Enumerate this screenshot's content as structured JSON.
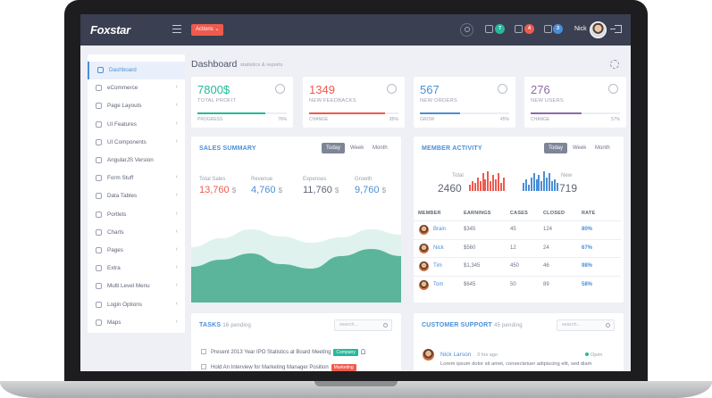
{
  "app": {
    "brand": "Foxstar",
    "actions_label": "Actions ⌄"
  },
  "header": {
    "badges": [
      {
        "icon": "bell-icon",
        "count": "7",
        "color": "#26b99a"
      },
      {
        "icon": "headset-icon",
        "count": "4",
        "color": "#ef5a4e"
      },
      {
        "icon": "calendar-icon",
        "count": "3",
        "color": "#4a8fd6"
      }
    ],
    "user_name": "Nick"
  },
  "sidebar": {
    "items": [
      {
        "label": "Dashboard",
        "icon": "home-icon",
        "chevron": "",
        "active": true
      },
      {
        "label": "eCommerce",
        "icon": "cart-icon",
        "chevron": "‹"
      },
      {
        "label": "Page Layouts",
        "icon": "layout-icon",
        "chevron": "‹"
      },
      {
        "label": "UI Features",
        "icon": "diamond-icon",
        "chevron": "‹"
      },
      {
        "label": "UI Components",
        "icon": "gear-icon",
        "chevron": "‹"
      },
      {
        "label": "AngularJS Version",
        "icon": "angular-icon",
        "chevron": ""
      },
      {
        "label": "Form Stuff",
        "icon": "form-icon",
        "chevron": "‹"
      },
      {
        "label": "Data Tables",
        "icon": "table-icon",
        "chevron": "‹"
      },
      {
        "label": "Portlets",
        "icon": "portlet-icon",
        "chevron": "‹"
      },
      {
        "label": "Charts",
        "icon": "chart-icon",
        "chevron": "‹"
      },
      {
        "label": "Pages",
        "icon": "pages-icon",
        "chevron": "‹"
      },
      {
        "label": "Extra",
        "icon": "extra-icon",
        "chevron": "‹"
      },
      {
        "label": "Multi Level Menu",
        "icon": "menu-icon",
        "chevron": "‹"
      },
      {
        "label": "Login Options",
        "icon": "login-icon",
        "chevron": "‹"
      },
      {
        "label": "Maps",
        "icon": "map-pin-icon",
        "chevron": "‹"
      }
    ]
  },
  "page": {
    "title": "Dashboard",
    "subtitle": "statistics & reports"
  },
  "stats": [
    {
      "value": "7800$",
      "label": "TOTAL PROFIT",
      "foot": "PROGRESS",
      "pct": "76%",
      "progress": 0.76,
      "color": "#26b99a",
      "icon": "pie-icon"
    },
    {
      "value": "1349",
      "label": "NEW FEEDBACKS",
      "foot": "CHANGE",
      "pct": "85%",
      "progress": 0.85,
      "color": "#ef5a4e",
      "icon": "thumbs-up-icon"
    },
    {
      "value": "567",
      "label": "NEW ORDERS",
      "foot": "GROW",
      "pct": "45%",
      "progress": 0.45,
      "color": "#4a8fd6",
      "icon": "basket-icon"
    },
    {
      "value": "276",
      "label": "NEW USERS",
      "foot": "CHANGE",
      "pct": "57%",
      "progress": 0.57,
      "color": "#8e6aa8",
      "icon": "user-icon"
    }
  ],
  "sales": {
    "title": "SALES SUMMARY",
    "tabs": [
      "Today",
      "Week",
      "Month"
    ],
    "metrics": [
      {
        "label": "Total Sales",
        "value": "13,760",
        "unit": "$",
        "color": "#ef5a4e"
      },
      {
        "label": "Revenue",
        "value": "4,760",
        "unit": "$",
        "color": "#4a8fd6"
      },
      {
        "label": "Expenses",
        "value": "11,760",
        "unit": "$",
        "color": "#5d6476"
      },
      {
        "label": "Growth",
        "value": "9,760",
        "unit": "$",
        "color": "#4a8fd6"
      }
    ],
    "chart_data": {
      "type": "area",
      "series": [
        {
          "values": [
            0.62,
            0.72,
            0.82,
            0.74,
            0.67,
            0.73,
            0.82,
            0.76
          ],
          "color": "#dff2ee"
        },
        {
          "values": [
            0.4,
            0.48,
            0.55,
            0.43,
            0.38,
            0.52,
            0.6,
            0.52
          ],
          "color": "#5bb59b"
        }
      ]
    }
  },
  "members": {
    "title": "MEMBER ACTIVITY",
    "tabs": [
      "Today",
      "Week",
      "Month"
    ],
    "total_label": "Total",
    "total_value": "2460",
    "new_label": "New",
    "new_value": "719",
    "chart_data": {
      "type": "bar",
      "series": [
        {
          "values": [
            3,
            5,
            4,
            7,
            5,
            9,
            6,
            10,
            5,
            8,
            6,
            9,
            4,
            7
          ],
          "color": "#ef5a4e"
        },
        {
          "values": [
            4,
            6,
            3,
            7,
            9,
            6,
            8,
            5,
            10,
            7,
            9,
            5,
            6,
            4
          ],
          "color": "#4a8fd6"
        }
      ]
    },
    "columns": [
      "MEMBER",
      "EARNINGS",
      "CASES",
      "CLOSED",
      "RATE"
    ],
    "rows": [
      {
        "name": "Brain",
        "earnings": "$345",
        "cases": "45",
        "closed": "124",
        "rate": "80%"
      },
      {
        "name": "Nick",
        "earnings": "$560",
        "cases": "12",
        "closed": "24",
        "rate": "67%"
      },
      {
        "name": "Tim",
        "earnings": "$1,345",
        "cases": "450",
        "closed": "46",
        "rate": "98%"
      },
      {
        "name": "Tom",
        "earnings": "$645",
        "cases": "50",
        "closed": "89",
        "rate": "58%"
      }
    ]
  },
  "tasks": {
    "title": "TASKS",
    "sub": "16 pending",
    "search_placeholder": "search...",
    "items": [
      {
        "text": "Present 2013 Year IPO Statistics at Board Meeting",
        "tag": "Company",
        "tag_color": "#26b99a"
      },
      {
        "text": "Hold An Interview for Marketing Manager Position",
        "tag": "Marketing",
        "tag_color": "#ef5a4e"
      }
    ]
  },
  "support": {
    "title": "CUSTOMER SUPPORT",
    "sub": "45 pending",
    "search_placeholder": "search...",
    "ticket": {
      "name": "Nick Larson",
      "time": "3 hrs ago",
      "status": "Open",
      "text": "Lorem ipsum dolor sit amet, consectetuer adipiscing elit, sed diam"
    }
  }
}
